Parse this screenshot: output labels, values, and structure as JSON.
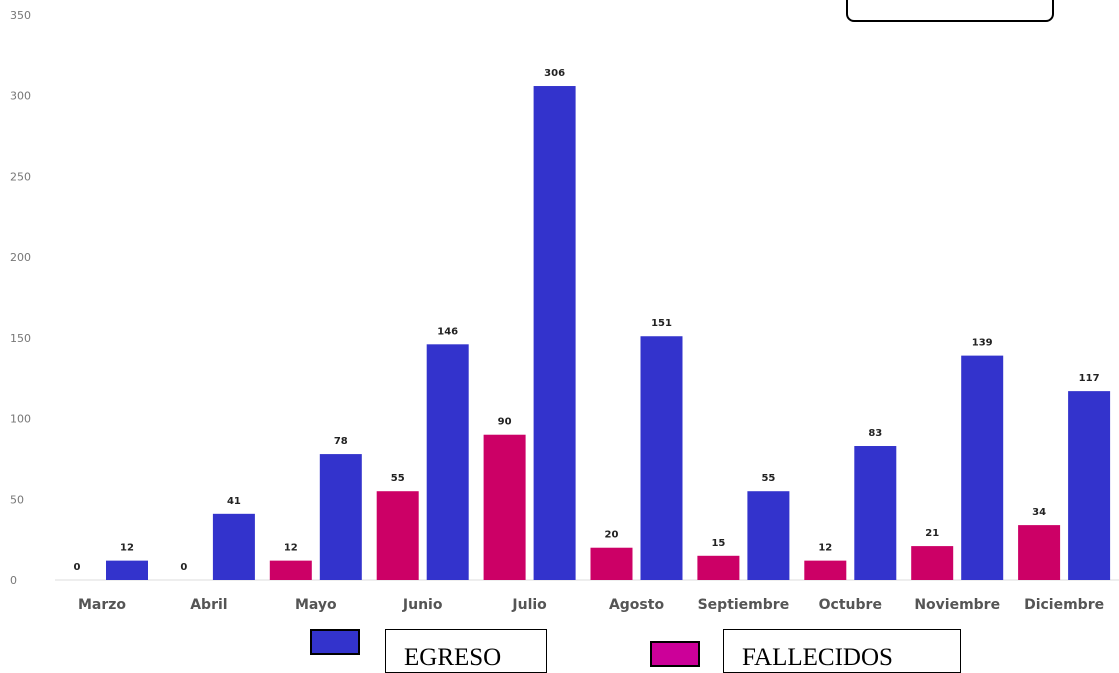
{
  "chart_data": {
    "type": "bar",
    "categories": [
      "Marzo",
      "Abril",
      "Mayo",
      "Junio",
      "Julio",
      "Agosto",
      "Septiembre",
      "Octubre",
      "Noviembre",
      "Diciembre"
    ],
    "series": [
      {
        "name": "FALLECIDOS",
        "color": "#cc0066",
        "values": [
          0,
          0,
          12,
          55,
          90,
          20,
          15,
          12,
          21,
          34
        ]
      },
      {
        "name": "EGRESO",
        "color": "#3333cc",
        "values": [
          12,
          41,
          78,
          146,
          306,
          151,
          55,
          83,
          139,
          117
        ]
      }
    ],
    "yticks": [
      "0",
      "50",
      "100",
      "150",
      "200",
      "250",
      "300",
      "350"
    ],
    "ylim": [
      0,
      350
    ],
    "grid": false,
    "legend_position": "bottom"
  },
  "legend": {
    "egreso_label": "EGRESO",
    "fallecidos_label": "FALLECIDOS"
  }
}
